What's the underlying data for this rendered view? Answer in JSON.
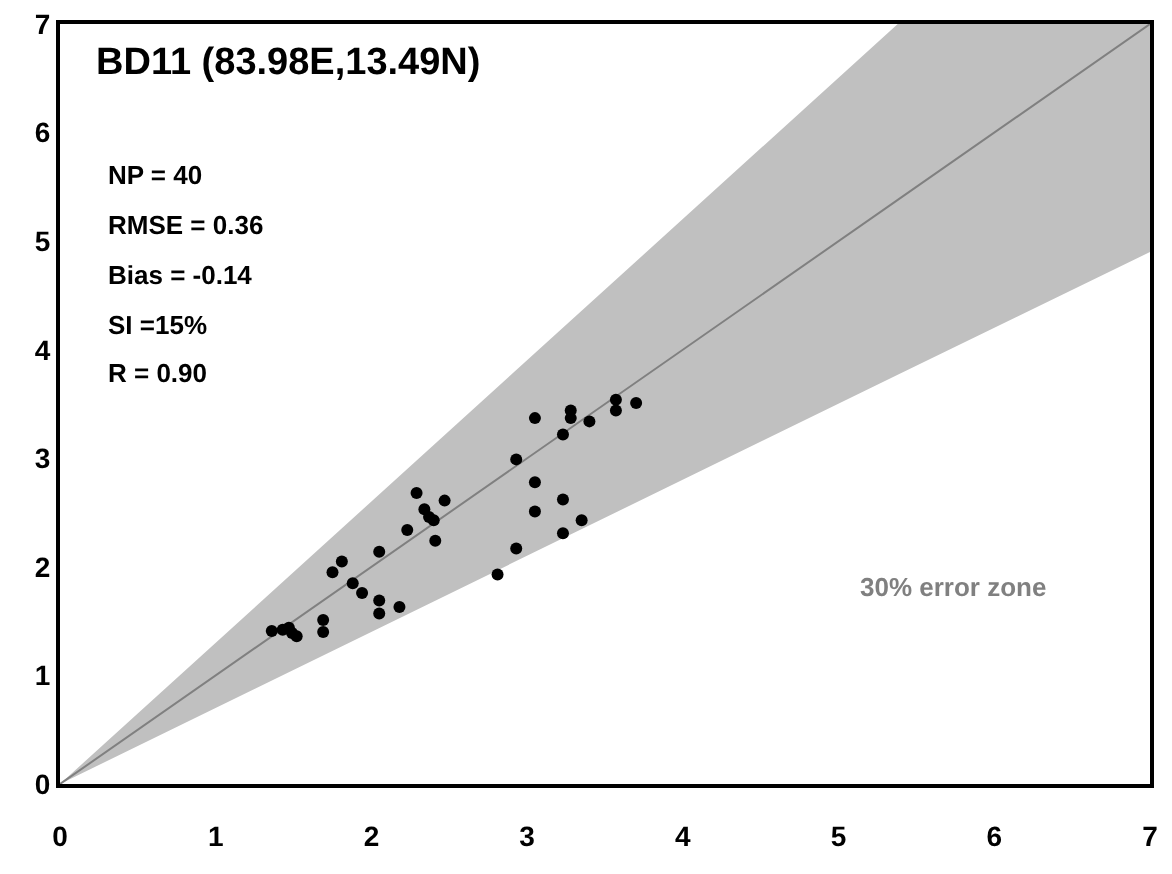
{
  "chart_data": {
    "type": "scatter",
    "title": "BD11 (83.98E,13.49N)",
    "annotations": [
      "NP = 40",
      "RMSE = 0.36",
      "Bias = -0.14",
      "SI =15%",
      "R = 0.90",
      "30% error zone"
    ],
    "xlim": [
      0,
      7
    ],
    "ylim": [
      0,
      7
    ],
    "xticks": [
      0,
      1,
      2,
      3,
      4,
      5,
      6,
      7
    ],
    "yticks": [
      0,
      1,
      2,
      3,
      4,
      5,
      6,
      7
    ],
    "grid": false,
    "legend": false,
    "series": [
      {
        "type": "line",
        "color": "#808080",
        "x": [
          0,
          5.38,
          7
        ],
        "values": [
          0,
          5.38,
          7
        ],
        "lower": [
          0,
          3.77,
          4.9
        ],
        "upper": [
          0,
          7,
          7
        ],
        "marker": "none",
        "line_style": "solid"
      },
      {
        "color": "#000000",
        "marker": "circle",
        "x": [
          1.36,
          1.43,
          1.47,
          1.49,
          1.52,
          1.69,
          1.69,
          1.75,
          1.81,
          1.88,
          1.94,
          2.05,
          2.05,
          2.05,
          2.18,
          2.23,
          2.29,
          2.34,
          2.37,
          2.4,
          2.41,
          2.47,
          2.81,
          2.93,
          2.93,
          3.05,
          3.05,
          3.05,
          3.23,
          3.23,
          3.23,
          3.28,
          3.28,
          3.35,
          3.4,
          3.57,
          3.57,
          3.7
        ],
        "values": [
          1.41,
          1.42,
          1.44,
          1.39,
          1.36,
          1.51,
          1.4,
          1.95,
          2.05,
          1.85,
          1.76,
          2.14,
          1.69,
          1.57,
          1.63,
          2.34,
          2.68,
          2.53,
          2.46,
          2.43,
          2.24,
          2.61,
          1.93,
          2.99,
          2.17,
          3.37,
          2.78,
          2.51,
          3.22,
          2.62,
          2.31,
          3.44,
          3.37,
          2.43,
          3.34,
          3.54,
          3.44,
          3.51
        ]
      }
    ]
  }
}
